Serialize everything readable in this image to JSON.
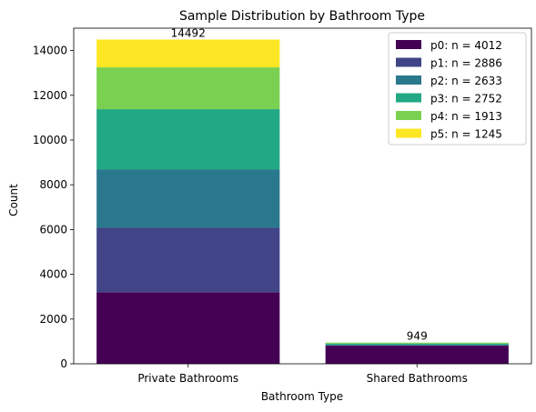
{
  "chart_data": {
    "type": "bar",
    "stacked": true,
    "title": "Sample Distribution by Bathroom Type",
    "xlabel": "Bathroom Type",
    "ylabel": "Count",
    "categories": [
      "Private Bathrooms",
      "Shared Bathrooms"
    ],
    "ylim": [
      0,
      15000
    ],
    "yticks": [
      0,
      2000,
      4000,
      6000,
      8000,
      10000,
      12000,
      14000
    ],
    "legend_position": "top-right",
    "grid": false,
    "totals": [
      "14492",
      "949"
    ],
    "series": [
      {
        "name": "p0: n = 4012",
        "color": "#440154",
        "values": [
          3200,
          812
        ]
      },
      {
        "name": "p1: n = 2886",
        "color": "#414487",
        "values": [
          2880,
          6
        ]
      },
      {
        "name": "p2: n = 2633",
        "color": "#2a788e",
        "values": [
          2600,
          33
        ]
      },
      {
        "name": "p3: n = 2752",
        "color": "#22a884",
        "values": [
          2700,
          52
        ]
      },
      {
        "name": "p4: n = 1913",
        "color": "#7ad151",
        "values": [
          1870,
          43
        ]
      },
      {
        "name": "p5: n = 1245",
        "color": "#fde725",
        "values": [
          1242,
          3
        ]
      }
    ]
  }
}
